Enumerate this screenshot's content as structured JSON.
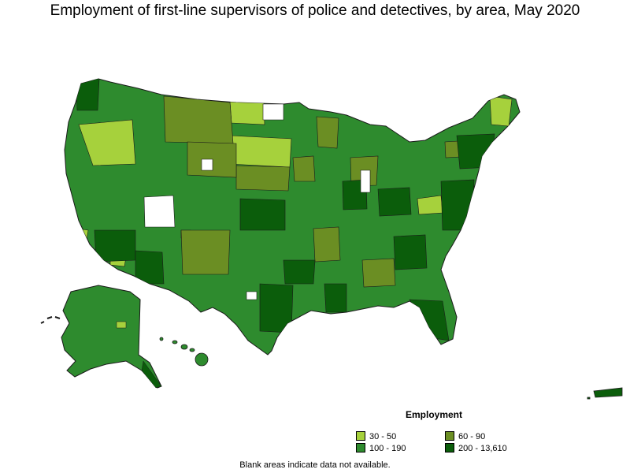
{
  "title": "Employment of first-line supervisors of police and detectives, by area, May 2020",
  "legend": {
    "title": "Employment",
    "items": [
      {
        "label": "30 - 50",
        "color": "#a6d13c"
      },
      {
        "label": "60 - 90",
        "color": "#6b8e23"
      },
      {
        "label": "100 - 190",
        "color": "#2e8b2e"
      },
      {
        "label": "200 - 13,610",
        "color": "#0b5d0b"
      }
    ]
  },
  "footnote": "Blank areas indicate data not available.",
  "colors": {
    "low": "#a6d13c",
    "mid_low": "#6b8e23",
    "mid_high": "#2e8b2e",
    "high": "#0b5d0b",
    "no_data": "#ffffff",
    "border": "#1a1a1a"
  }
}
